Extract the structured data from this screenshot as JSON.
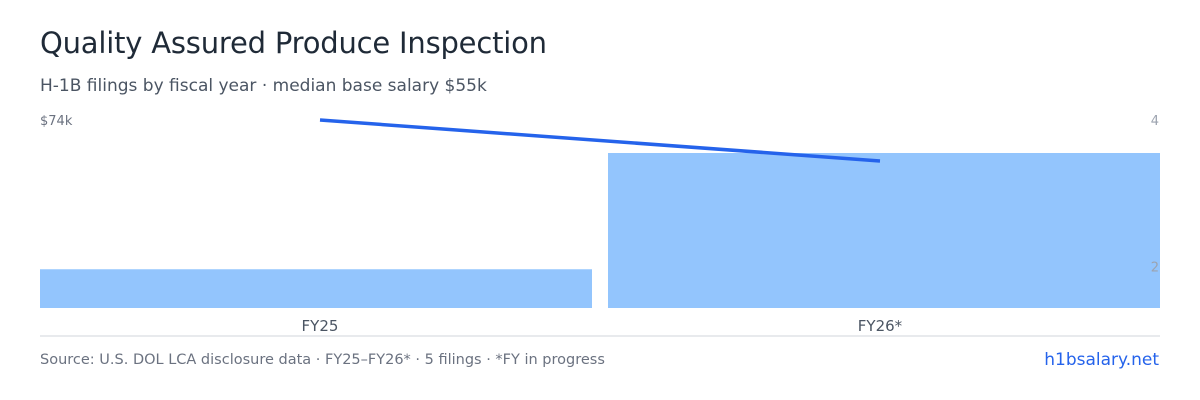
{
  "header": {
    "title": "Quality Assured Produce Inspection",
    "subtitle": "H-1B filings by fiscal year · median base salary $55k"
  },
  "footer": {
    "source": "Source: U.S. DOL LCA disclosure data · FY25–FY26* · 5 filings · *FY in progress",
    "brand": "h1bsalary.net"
  },
  "colors": {
    "bar": "#93c5fd",
    "line": "#2563eb",
    "axis": "#d1d5db",
    "tick": "#6b7280",
    "right_tick": "#9ca3af"
  },
  "chart_data": {
    "type": "bar",
    "categories": [
      "FY25",
      "FY26*"
    ],
    "series": [
      {
        "values": [
          1,
          4
        ],
        "kind": "bar",
        "axis": "right"
      },
      {
        "values": [
          74,
          63
        ],
        "kind": "line",
        "axis": "left"
      }
    ],
    "left_axis": {
      "ticks": [
        "$74k"
      ],
      "tick_values": [
        74
      ]
    },
    "right_axis": {
      "ticks": [
        "4",
        "2"
      ],
      "tick_values": [
        4,
        2
      ],
      "ylim": [
        0,
        4
      ]
    },
    "grid": false
  }
}
